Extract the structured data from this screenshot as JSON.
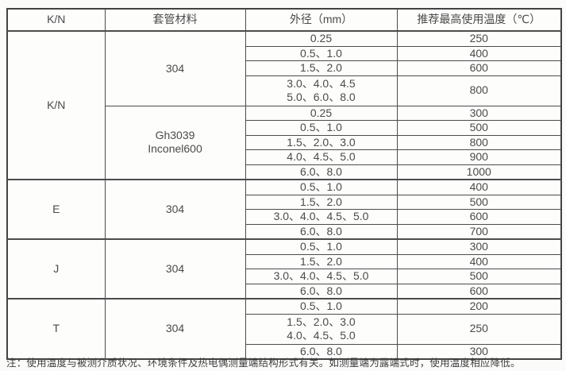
{
  "note": "注：使用温度与被测介质状况、环境条件及热电偶测量端结构形式有关。如测量端为露端式时，使用温度相应降低。",
  "chart_data": {
    "type": "table",
    "columns": [
      "K/N",
      "套管材料",
      "外径（mm）",
      "推荐最高使用温度（℃）"
    ],
    "sections": [
      {
        "kn": "K/N",
        "materials": [
          {
            "name": [
              "304"
            ],
            "rows": [
              {
                "od": [
                  "0.25"
                ],
                "temp": "250"
              },
              {
                "od": [
                  "0.5、1.0"
                ],
                "temp": "400"
              },
              {
                "od": [
                  "1.5、2.0"
                ],
                "temp": "600"
              },
              {
                "od": [
                  "3.0、4.0、4.5",
                  "5.0、6.0、8.0"
                ],
                "temp": "800"
              }
            ]
          },
          {
            "name": [
              "Gh3039",
              "Inconel600"
            ],
            "rows": [
              {
                "od": [
                  "0.25"
                ],
                "temp": "300"
              },
              {
                "od": [
                  "0.5、1.0"
                ],
                "temp": "500"
              },
              {
                "od": [
                  "1.5、2.0、3.0"
                ],
                "temp": "800"
              },
              {
                "od": [
                  "4.0、4.5、5.0"
                ],
                "temp": "900"
              },
              {
                "od": [
                  "6.0、8.0"
                ],
                "temp": "1000"
              }
            ]
          }
        ]
      },
      {
        "kn": "E",
        "materials": [
          {
            "name": [
              "304"
            ],
            "rows": [
              {
                "od": [
                  "0.5、1.0"
                ],
                "temp": "400"
              },
              {
                "od": [
                  "1.5、2.0"
                ],
                "temp": "500"
              },
              {
                "od": [
                  "3.0、4.0、4.5、5.0"
                ],
                "temp": "600"
              },
              {
                "od": [
                  "6.0、8.0"
                ],
                "temp": "700"
              }
            ]
          }
        ]
      },
      {
        "kn": "J",
        "materials": [
          {
            "name": [
              "304"
            ],
            "rows": [
              {
                "od": [
                  "0.5、1.0"
                ],
                "temp": "300"
              },
              {
                "od": [
                  "1.5、2.0"
                ],
                "temp": "400"
              },
              {
                "od": [
                  "3.0、4.0、4.5、5.0"
                ],
                "temp": "500"
              },
              {
                "od": [
                  "6.0、8.0"
                ],
                "temp": "600"
              }
            ]
          }
        ]
      },
      {
        "kn": "T",
        "materials": [
          {
            "name": [
              "304"
            ],
            "rows": [
              {
                "od": [
                  "0.5、1.0"
                ],
                "temp": "200"
              },
              {
                "od": [
                  "1.5、2.0、3.0",
                  "4.0、4.5、5.0"
                ],
                "temp": "250"
              },
              {
                "od": [
                  "6.0、8.0"
                ],
                "temp": "300"
              }
            ]
          }
        ]
      }
    ]
  }
}
